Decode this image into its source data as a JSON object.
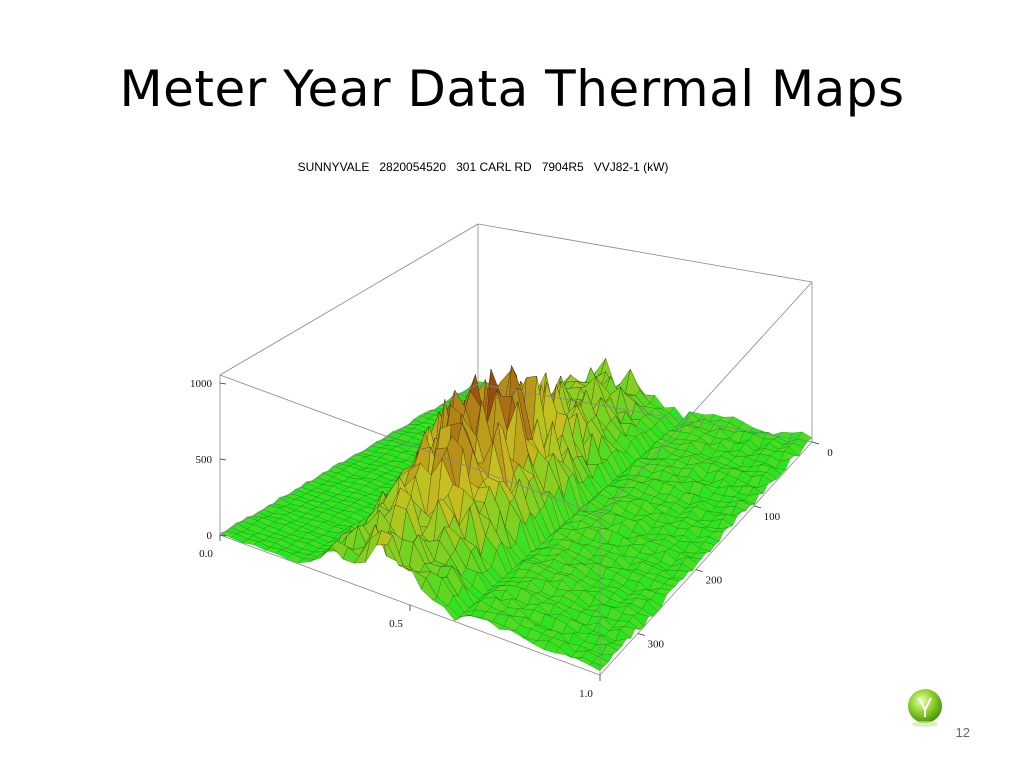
{
  "slide": {
    "title": "Meter Year Data Thermal Maps",
    "page_number": "12",
    "logo_icon": "green-orb-logo-icon"
  },
  "chart_data": {
    "type": "surface3d",
    "title": "SUNNYVALE   2820054520   301 CARL RD   7904R5   VVJ82-1 (kW)",
    "z_ticks": [
      "0",
      "500",
      "1000"
    ],
    "z_range": [
      0,
      1000
    ],
    "x_ticks": [
      "0.0",
      "0.5",
      "1.0"
    ],
    "x_range": [
      0,
      1
    ],
    "y_ticks": [
      "0",
      "100",
      "200",
      "300"
    ],
    "y_range": [
      0,
      365
    ],
    "colors": {
      "low": "#22e622",
      "mid": "#c8c020",
      "high": "#8b1a0a"
    }
  }
}
